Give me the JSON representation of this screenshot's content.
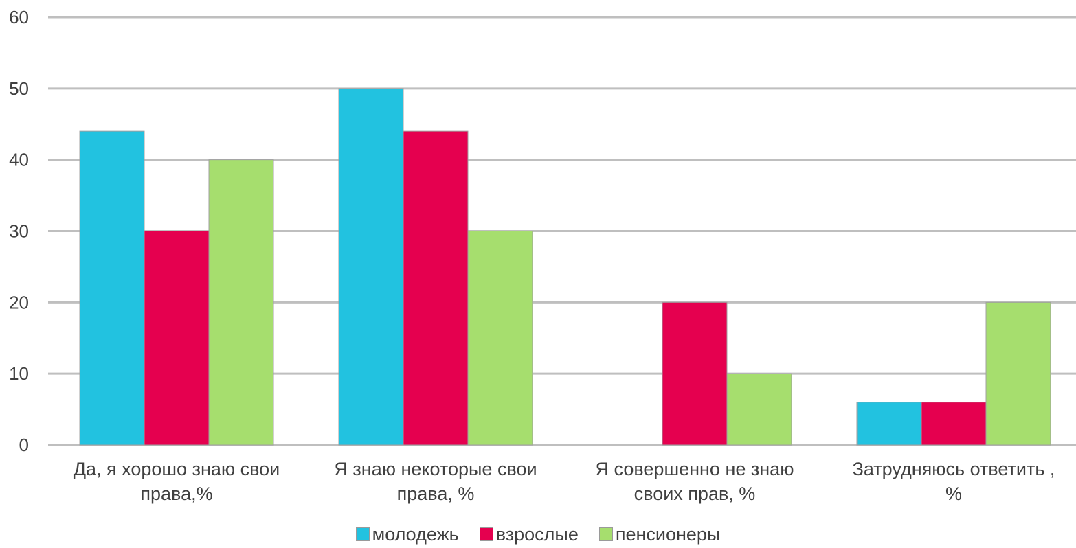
{
  "chart_data": {
    "type": "bar",
    "categories": [
      [
        "Да, я хорошо знаю свои",
        "права,%"
      ],
      [
        "Я знаю некоторые свои",
        "права, %"
      ],
      [
        "Я совершенно не знаю",
        "своих прав, %"
      ],
      [
        "Затрудняюсь ответить ,",
        "%"
      ]
    ],
    "series": [
      {
        "name": "молодежь",
        "color": "#22c2e0",
        "values": [
          44,
          50,
          0,
          6
        ]
      },
      {
        "name": "взрослые",
        "color": "#e5004f",
        "values": [
          30,
          44,
          20,
          6
        ]
      },
      {
        "name": "пенсионеры",
        "color": "#a6de6e",
        "values": [
          40,
          30,
          10,
          20
        ]
      }
    ],
    "ylim": [
      0,
      60
    ],
    "yticks": [
      0,
      10,
      20,
      30,
      40,
      50,
      60
    ],
    "grid": true,
    "legend_position": "bottom"
  }
}
